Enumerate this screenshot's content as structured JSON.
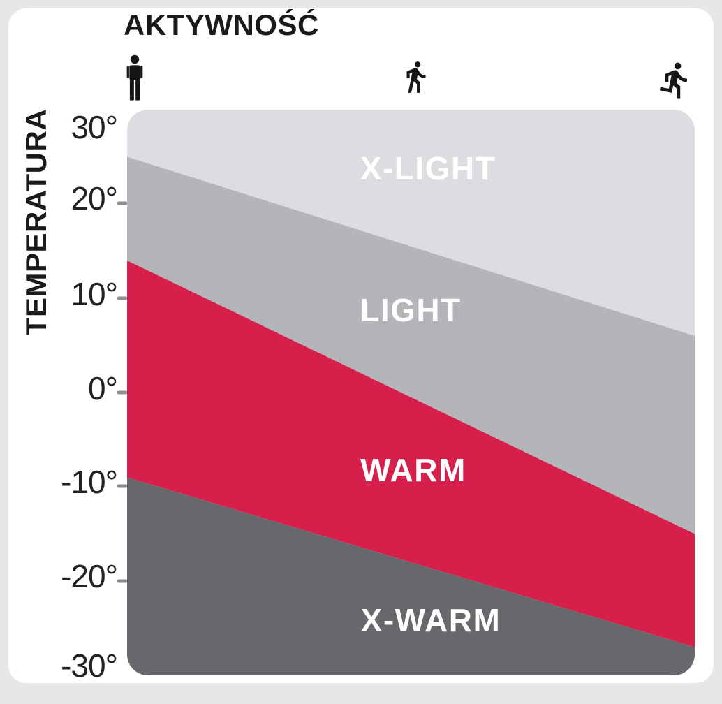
{
  "page": {
    "background_color": "#e6e7e9",
    "card_color": "#ffffff"
  },
  "header": {
    "title": "AKTYWNOŚĆ"
  },
  "y_axis": {
    "label": "TEMPERATURA",
    "ticks": [
      "30°",
      "20°",
      "10°",
      "0°",
      "-10°",
      "-20°",
      "-30°"
    ]
  },
  "activity_icons": [
    {
      "name": "standing-person-icon",
      "meaning": "low activity"
    },
    {
      "name": "walking-person-icon",
      "meaning": "medium activity"
    },
    {
      "name": "running-person-icon",
      "meaning": "high activity"
    }
  ],
  "chart_data": {
    "type": "area",
    "title": "AKTYWNOŚĆ",
    "xlabel": "AKTYWNOŚĆ (activity level, low → high)",
    "ylabel": "TEMPERATURA",
    "x_categories": [
      "standing (low activity)",
      "walking (medium activity)",
      "running (high activity)"
    ],
    "ylim": [
      -30,
      30
    ],
    "y_ticks": [
      30,
      20,
      10,
      0,
      -10,
      -20,
      -30
    ],
    "grid": false,
    "legend": "labels drawn inside zones",
    "zones": [
      {
        "label": "X-LIGHT",
        "color": "#dcdde0",
        "temp_low_activity": [
          25,
          30
        ],
        "temp_high_activity": [
          6,
          30
        ]
      },
      {
        "label": "LIGHT",
        "color": "#b4b5b9",
        "temp_low_activity": [
          14,
          25
        ],
        "temp_high_activity": [
          -15,
          6
        ]
      },
      {
        "label": "WARM",
        "color": "#d71f4b",
        "temp_low_activity": [
          -9,
          14
        ],
        "temp_high_activity": [
          -27,
          -15
        ]
      },
      {
        "label": "X-WARM",
        "color": "#67686c",
        "temp_low_activity": [
          -30,
          -9
        ],
        "temp_high_activity": [
          -30,
          -27
        ]
      }
    ]
  }
}
